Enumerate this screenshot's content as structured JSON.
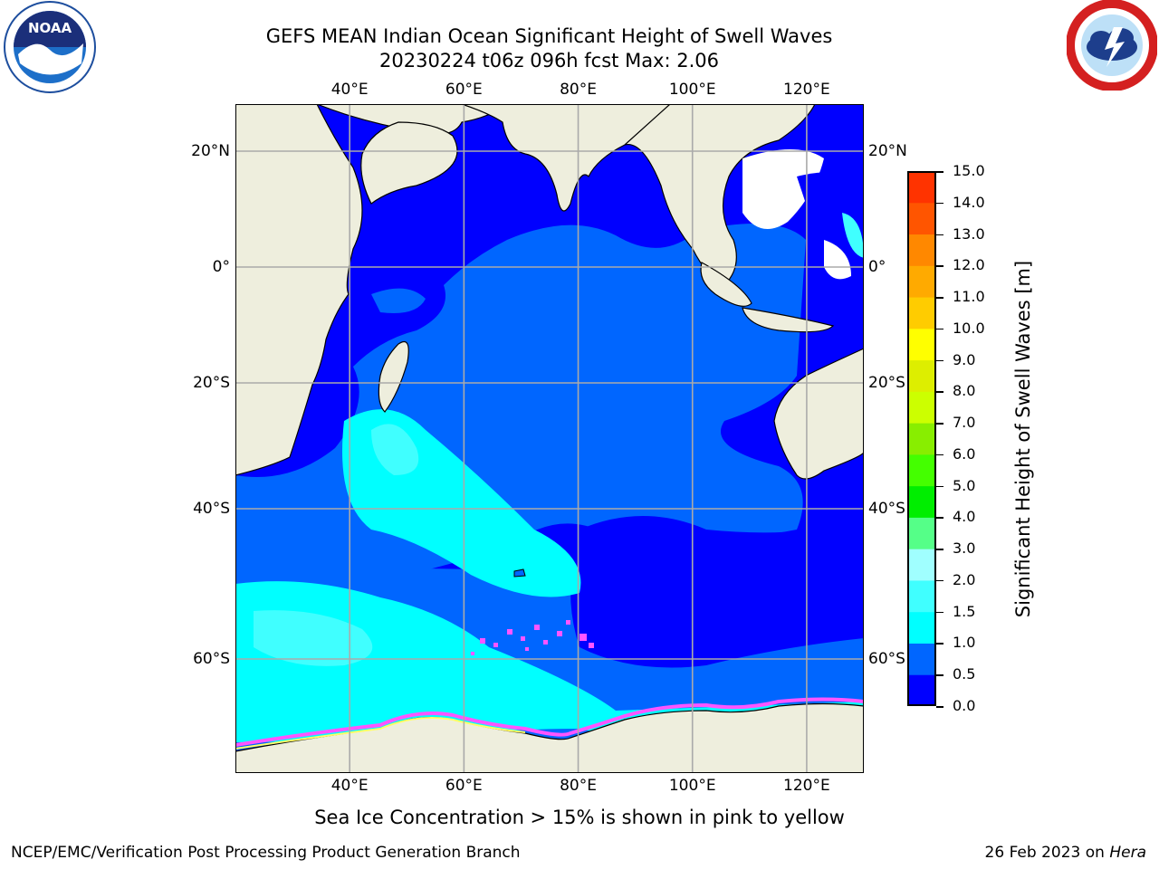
{
  "title_line1": "GEFS MEAN Indian Ocean Significant Height of Swell Waves",
  "title_line2": "20230224 t06z 096h fcst   Max: 2.06",
  "map": {
    "lon_labels": [
      "40°E",
      "60°E",
      "80°E",
      "100°E",
      "120°E"
    ],
    "lon_values": [
      40,
      60,
      80,
      100,
      120
    ],
    "lat_labels_left": [
      "20°N",
      "0°",
      "20°S",
      "40°S",
      "60°S"
    ],
    "lat_labels_right": [
      "20°N",
      "0°",
      "20°S",
      "40°S",
      "60°S"
    ],
    "lat_values": [
      20,
      0,
      -20,
      -40,
      -60
    ],
    "lon_range": [
      20,
      130
    ],
    "lat_range": [
      -75,
      28
    ],
    "grid": true,
    "colors": {
      "ocean_deep": "#0000ff",
      "ocean_mid": "#0066ff",
      "ocean_cyan": "#00ffff",
      "ocean_lightcyan": "#40ffff",
      "land": "#eeeedd",
      "ice_pink": "#ff55ff",
      "ice_yellow": "#ffff66",
      "grid": "#aaaaaa"
    }
  },
  "colorbar": {
    "tick_labels": [
      "15.0",
      "14.0",
      "13.0",
      "12.0",
      "11.0",
      "10.0",
      "9.0",
      "8.0",
      "7.0",
      "6.0",
      "5.0",
      "4.0",
      "3.0",
      "2.0",
      "1.5",
      "1.0",
      "0.5",
      "0.0"
    ],
    "colors_bottom_to_top": [
      "#0000ff",
      "#0066ff",
      "#00ffff",
      "#40ffff",
      "#a0ffff",
      "#55ff88",
      "#00ee00",
      "#44ff00",
      "#88ee00",
      "#ccff00",
      "#ddee00",
      "#ffff00",
      "#ffcc00",
      "#ffaa00",
      "#ff8800",
      "#ff5500",
      "#ff3300",
      "#ff0000"
    ],
    "label": "Significant Height of Swell Waves [m]"
  },
  "bottom_note": "Sea Ice Concentration > 15% is shown in pink to yellow",
  "footer": {
    "left": "NCEP/EMC/Verification Post Processing Product Generation Branch",
    "right_date": "26 Feb 2023 on ",
    "right_host": "Hera"
  },
  "logos": {
    "noaa_text": "NOAA",
    "noaa_icon": "noaa-logo-icon",
    "nws_icon": "nws-logo-icon"
  }
}
